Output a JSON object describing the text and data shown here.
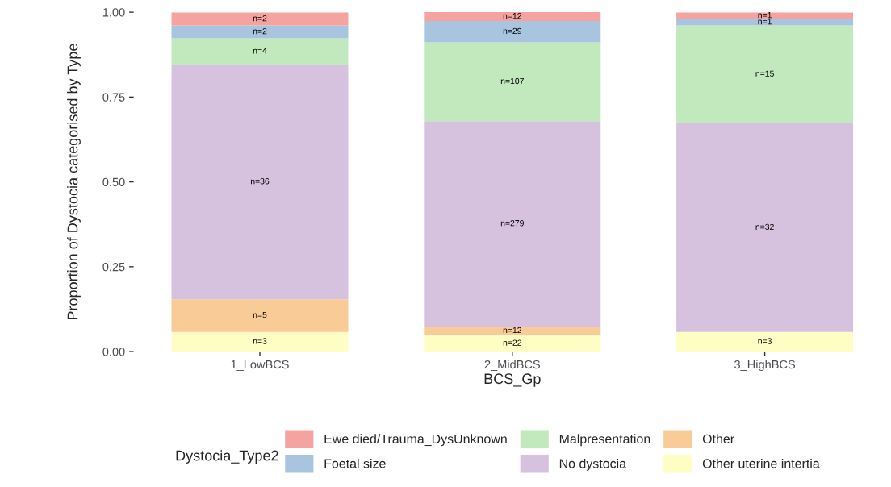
{
  "chart_data": {
    "type": "bar",
    "stacked": true,
    "xlabel": "BCS_Gp",
    "ylabel": "Proportion of Dystocia categorised by Type",
    "legend_title": "Dystocia_Type2",
    "legend": "bottom",
    "categories": [
      "1_LowBCS",
      "2_MidBCS",
      "3_HighBCS"
    ],
    "ylim": [
      0,
      1
    ],
    "yticks": [
      {
        "value": 0,
        "label": "0.00"
      },
      {
        "value": 0.25,
        "label": "0.25"
      },
      {
        "value": 0.5,
        "label": "0.50"
      },
      {
        "value": 0.75,
        "label": "0.75"
      },
      {
        "value": 1,
        "label": "1.00"
      }
    ],
    "grid": false,
    "series": [
      {
        "name": "Other uterine intertia",
        "color": "#fefdc3",
        "values": [
          0.058,
          0.048,
          0.058
        ]
      },
      {
        "name": "Other",
        "color": "#f8cb97",
        "values": [
          0.096,
          0.026,
          null
        ]
      },
      {
        "name": "No dystocia",
        "color": "#d6c1de",
        "values": [
          0.692,
          0.605,
          0.615
        ]
      },
      {
        "name": "Malpresentation",
        "color": "#c2e8be",
        "values": [
          0.077,
          0.232,
          0.288
        ]
      },
      {
        "name": "Foetal size",
        "color": "#a9c4de",
        "values": [
          0.038,
          0.063,
          0.019
        ]
      },
      {
        "name": "Ewe died/Trauma_DysUnknown",
        "color": "#f4a3a0",
        "values": [
          0.038,
          0.026,
          0.019
        ]
      }
    ],
    "annotations": [
      "n=3",
      "n=22",
      "n=3",
      "n=5",
      "n=12",
      "n=36",
      "n=279",
      "n=32",
      "n=4",
      "n=107",
      "n=15",
      "n=2",
      "n=29",
      "n=1",
      "n=2",
      "n=12",
      "n=1"
    ]
  }
}
